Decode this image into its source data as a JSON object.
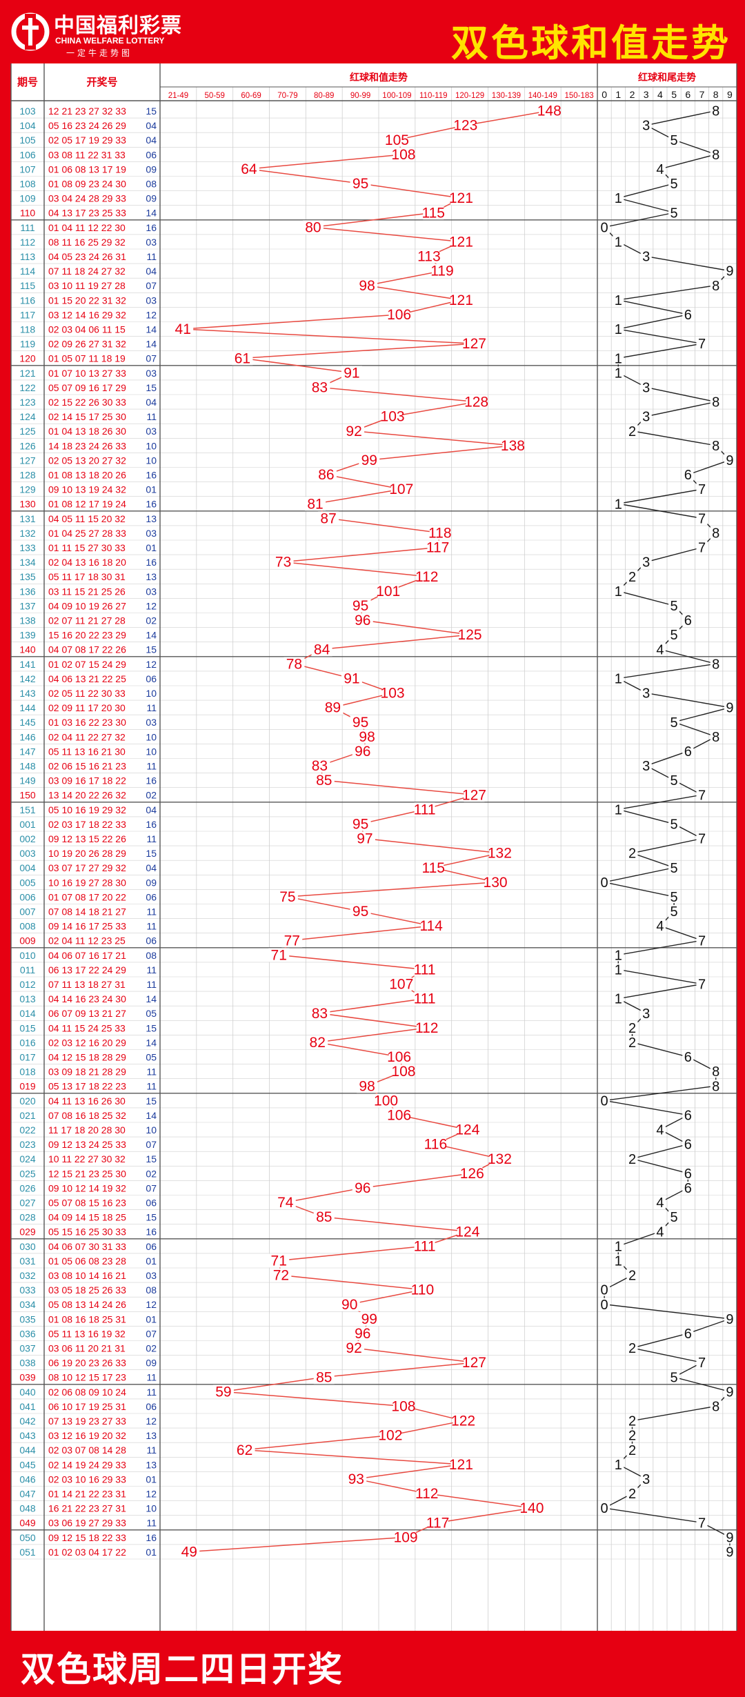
{
  "header": {
    "logo_cn": "中国福利彩票",
    "logo_en": "CHINA WELFARE LOTTERY",
    "logo_sub": "一定牛走势图",
    "title": "双色球和值走势"
  },
  "table": {
    "col_period": "期号",
    "col_draw": "开奖号",
    "col_sum": "红球和值走势",
    "col_tail": "红球和尾走势",
    "sum_ranges": [
      "21-49",
      "50-59",
      "60-69",
      "70-79",
      "80-89",
      "90-99",
      "100-109",
      "110-119",
      "120-129",
      "130-139",
      "140-149",
      "150-183"
    ],
    "tail_digits": [
      "0",
      "1",
      "2",
      "3",
      "4",
      "5",
      "6",
      "7",
      "8",
      "9"
    ]
  },
  "footer": {
    "text": "双色球周二四日开奖"
  },
  "colors": {
    "red": "#e60012",
    "yellow": "#ffe400",
    "teal": "#2b8fa8",
    "blue": "#1a3a9c",
    "grid": "#cfcfcf",
    "line": "#e8483f"
  },
  "chart_data": [
    {
      "type": "line",
      "title": "红球和值走势",
      "x": [
        "103",
        "104",
        "105",
        "106",
        "107",
        "108",
        "109",
        "110",
        "111",
        "112",
        "113",
        "114",
        "115",
        "116",
        "117",
        "118",
        "119",
        "120",
        "121",
        "122",
        "123",
        "124",
        "125",
        "126",
        "127",
        "128",
        "129",
        "130",
        "131",
        "132",
        "133",
        "134",
        "135",
        "136",
        "137",
        "138",
        "139",
        "140",
        "141",
        "142",
        "143",
        "144",
        "145",
        "146",
        "147",
        "148",
        "149",
        "150",
        "151",
        "001",
        "002",
        "003",
        "004",
        "005",
        "006",
        "007",
        "008",
        "009",
        "010",
        "011",
        "012",
        "013",
        "014",
        "015",
        "016",
        "017",
        "018",
        "019",
        "020",
        "021",
        "022",
        "023",
        "024",
        "025",
        "026",
        "027",
        "028",
        "029",
        "030",
        "031",
        "032",
        "033",
        "034",
        "035",
        "036",
        "037",
        "038",
        "039",
        "040",
        "041",
        "042",
        "043",
        "044",
        "045",
        "046",
        "047",
        "048",
        "049",
        "050",
        "051"
      ],
      "categories": [
        "21-49",
        "50-59",
        "60-69",
        "70-79",
        "80-89",
        "90-99",
        "100-109",
        "110-119",
        "120-129",
        "130-139",
        "140-149",
        "150-183"
      ],
      "values": [
        148,
        123,
        105,
        108,
        64,
        95,
        121,
        115,
        80,
        121,
        113,
        119,
        98,
        121,
        106,
        41,
        127,
        61,
        91,
        83,
        128,
        103,
        92,
        138,
        99,
        86,
        107,
        81,
        87,
        118,
        117,
        73,
        112,
        101,
        95,
        96,
        125,
        84,
        78,
        91,
        103,
        89,
        95,
        98,
        96,
        83,
        85,
        127,
        111,
        95,
        97,
        132,
        115,
        130,
        75,
        95,
        114,
        77,
        71,
        111,
        107,
        111,
        83,
        112,
        82,
        106,
        108,
        98,
        100,
        106,
        124,
        116,
        132,
        126,
        96,
        74,
        85,
        124,
        111,
        71,
        72,
        110,
        90,
        99,
        96,
        92,
        127,
        85,
        59,
        108,
        122,
        102,
        62,
        121,
        93,
        112,
        140,
        117,
        109,
        49
      ]
    },
    {
      "type": "line",
      "title": "红球和尾走势",
      "x": [
        "103",
        "104",
        "105",
        "106",
        "107",
        "108",
        "109",
        "110",
        "111",
        "112",
        "113",
        "114",
        "115",
        "116",
        "117",
        "118",
        "119",
        "120",
        "121",
        "122",
        "123",
        "124",
        "125",
        "126",
        "127",
        "128",
        "129",
        "130",
        "131",
        "132",
        "133",
        "134",
        "135",
        "136",
        "137",
        "138",
        "139",
        "140",
        "141",
        "142",
        "143",
        "144",
        "145",
        "146",
        "147",
        "148",
        "149",
        "150",
        "151",
        "001",
        "002",
        "003",
        "004",
        "005",
        "006",
        "007",
        "008",
        "009",
        "010",
        "011",
        "012",
        "013",
        "014",
        "015",
        "016",
        "017",
        "018",
        "019",
        "020",
        "021",
        "022",
        "023",
        "024",
        "025",
        "026",
        "027",
        "028",
        "029",
        "030",
        "031",
        "032",
        "033",
        "034",
        "035",
        "036",
        "037",
        "038",
        "039",
        "040",
        "041",
        "042",
        "043",
        "044",
        "045",
        "046",
        "047",
        "048",
        "049",
        "050",
        "051"
      ],
      "categories": [
        "0",
        "1",
        "2",
        "3",
        "4",
        "5",
        "6",
        "7",
        "8",
        "9"
      ],
      "values": [
        8,
        3,
        5,
        8,
        4,
        5,
        1,
        5,
        0,
        1,
        3,
        9,
        8,
        1,
        6,
        1,
        7,
        1,
        1,
        3,
        8,
        3,
        2,
        8,
        9,
        6,
        7,
        1,
        7,
        8,
        7,
        3,
        2,
        1,
        5,
        6,
        5,
        4,
        8,
        1,
        3,
        9,
        5,
        8,
        6,
        3,
        5,
        7,
        1,
        5,
        7,
        2,
        5,
        0,
        5,
        5,
        4,
        7,
        1,
        1,
        7,
        1,
        3,
        2,
        2,
        6,
        8,
        8,
        0,
        6,
        4,
        6,
        2,
        6,
        6,
        4,
        5,
        4,
        1,
        1,
        2,
        0,
        0,
        9,
        6,
        2,
        7,
        5,
        9,
        8,
        2,
        2,
        2,
        1,
        3,
        2,
        0,
        7,
        9,
        9
      ]
    }
  ],
  "draws": [
    {
      "p": "103",
      "red": "12 21 23 27 32 33",
      "blue": "15"
    },
    {
      "p": "104",
      "red": "05 16 23 24 26 29",
      "blue": "04"
    },
    {
      "p": "105",
      "red": "02 05 17 19 29 33",
      "blue": "04"
    },
    {
      "p": "106",
      "red": "03 08 11 22 31 33",
      "blue": "06"
    },
    {
      "p": "107",
      "red": "01 06 08 13 17 19",
      "blue": "09"
    },
    {
      "p": "108",
      "red": "01 08 09 23 24 30",
      "blue": "08"
    },
    {
      "p": "109",
      "red": "03 04 24 28 29 33",
      "blue": "09"
    },
    {
      "p": "110",
      "red": "04 13 17 23 25 33",
      "blue": "14"
    },
    {
      "p": "111",
      "red": "01 04 11 12 22 30",
      "blue": "16"
    },
    {
      "p": "112",
      "red": "08 11 16 25 29 32",
      "blue": "03"
    },
    {
      "p": "113",
      "red": "04 05 23 24 26 31",
      "blue": "11"
    },
    {
      "p": "114",
      "red": "07 11 18 24 27 32",
      "blue": "04"
    },
    {
      "p": "115",
      "red": "03 10 11 19 27 28",
      "blue": "07"
    },
    {
      "p": "116",
      "red": "01 15 20 22 31 32",
      "blue": "03"
    },
    {
      "p": "117",
      "red": "03 12 14 16 29 32",
      "blue": "12"
    },
    {
      "p": "118",
      "red": "02 03 04 06 11 15",
      "blue": "14"
    },
    {
      "p": "119",
      "red": "02 09 26 27 31 32",
      "blue": "14"
    },
    {
      "p": "120",
      "red": "01 05 07 11 18 19",
      "blue": "07"
    },
    {
      "p": "121",
      "red": "01 07 10 13 27 33",
      "blue": "03"
    },
    {
      "p": "122",
      "red": "05 07 09 16 17 29",
      "blue": "15"
    },
    {
      "p": "123",
      "red": "02 15 22 26 30 33",
      "blue": "04"
    },
    {
      "p": "124",
      "red": "02 14 15 17 25 30",
      "blue": "11"
    },
    {
      "p": "125",
      "red": "01 04 13 18 26 30",
      "blue": "03"
    },
    {
      "p": "126",
      "red": "14 18 23 24 26 33",
      "blue": "10"
    },
    {
      "p": "127",
      "red": "02 05 13 20 27 32",
      "blue": "10"
    },
    {
      "p": "128",
      "red": "01 08 13 18 20 26",
      "blue": "16"
    },
    {
      "p": "129",
      "red": "09 10 13 19 24 32",
      "blue": "01"
    },
    {
      "p": "130",
      "red": "01 08 12 17 19 24",
      "blue": "16"
    },
    {
      "p": "131",
      "red": "04 05 11 15 20 32",
      "blue": "13"
    },
    {
      "p": "132",
      "red": "01 04 25 27 28 33",
      "blue": "03"
    },
    {
      "p": "133",
      "red": "01 11 15 27 30 33",
      "blue": "01"
    },
    {
      "p": "134",
      "red": "02 04 13 16 18 20",
      "blue": "16"
    },
    {
      "p": "135",
      "red": "05 11 17 18 30 31",
      "blue": "13"
    },
    {
      "p": "136",
      "red": "03 11 15 21 25 26",
      "blue": "03"
    },
    {
      "p": "137",
      "red": "04 09 10 19 26 27",
      "blue": "12"
    },
    {
      "p": "138",
      "red": "02 07 11 21 27 28",
      "blue": "02"
    },
    {
      "p": "139",
      "red": "15 16 20 22 23 29",
      "blue": "14"
    },
    {
      "p": "140",
      "red": "04 07 08 17 22 26",
      "blue": "15"
    },
    {
      "p": "141",
      "red": "01 02 07 15 24 29",
      "blue": "12"
    },
    {
      "p": "142",
      "red": "04 06 13 21 22 25",
      "blue": "06"
    },
    {
      "p": "143",
      "red": "02 05 11 22 30 33",
      "blue": "10"
    },
    {
      "p": "144",
      "red": "02 09 11 17 20 30",
      "blue": "11"
    },
    {
      "p": "145",
      "red": "01 03 16 22 23 30",
      "blue": "03"
    },
    {
      "p": "146",
      "red": "02 04 11 22 27 32",
      "blue": "10"
    },
    {
      "p": "147",
      "red": "05 11 13 16 21 30",
      "blue": "10"
    },
    {
      "p": "148",
      "red": "02 06 15 16 21 23",
      "blue": "11"
    },
    {
      "p": "149",
      "red": "03 09 16 17 18 22",
      "blue": "16"
    },
    {
      "p": "150",
      "red": "13 14 20 22 26 32",
      "blue": "02"
    },
    {
      "p": "151",
      "red": "05 10 16 19 29 32",
      "blue": "04"
    },
    {
      "p": "001",
      "red": "02 03 17 18 22 33",
      "blue": "16"
    },
    {
      "p": "002",
      "red": "09 12 13 15 22 26",
      "blue": "11"
    },
    {
      "p": "003",
      "red": "10 19 20 26 28 29",
      "blue": "15"
    },
    {
      "p": "004",
      "red": "03 07 17 27 29 32",
      "blue": "04"
    },
    {
      "p": "005",
      "red": "10 16 19 27 28 30",
      "blue": "09"
    },
    {
      "p": "006",
      "red": "01 07 08 17 20 22",
      "blue": "06"
    },
    {
      "p": "007",
      "red": "07 08 14 18 21 27",
      "blue": "11"
    },
    {
      "p": "008",
      "red": "09 14 16 17 25 33",
      "blue": "11"
    },
    {
      "p": "009",
      "red": "02 04 11 12 23 25",
      "blue": "06"
    },
    {
      "p": "010",
      "red": "04 06 07 16 17 21",
      "blue": "08"
    },
    {
      "p": "011",
      "red": "06 13 17 22 24 29",
      "blue": "11"
    },
    {
      "p": "012",
      "red": "07 11 13 18 27 31",
      "blue": "11"
    },
    {
      "p": "013",
      "red": "04 14 16 23 24 30",
      "blue": "14"
    },
    {
      "p": "014",
      "red": "06 07 09 13 21 27",
      "blue": "05"
    },
    {
      "p": "015",
      "red": "04 11 15 24 25 33",
      "blue": "15"
    },
    {
      "p": "016",
      "red": "02 03 12 16 20 29",
      "blue": "14"
    },
    {
      "p": "017",
      "red": "04 12 15 18 28 29",
      "blue": "05"
    },
    {
      "p": "018",
      "red": "03 09 18 21 28 29",
      "blue": "11"
    },
    {
      "p": "019",
      "red": "05 13 17 18 22 23",
      "blue": "11"
    },
    {
      "p": "020",
      "red": "04 11 13 16 26 30",
      "blue": "15"
    },
    {
      "p": "021",
      "red": "07 08 16 18 25 32",
      "blue": "14"
    },
    {
      "p": "022",
      "red": "11 17 18 20 28 30",
      "blue": "10"
    },
    {
      "p": "023",
      "red": "09 12 13 24 25 33",
      "blue": "07"
    },
    {
      "p": "024",
      "red": "10 11 22 27 30 32",
      "blue": "15"
    },
    {
      "p": "025",
      "red": "12 15 21 23 25 30",
      "blue": "02"
    },
    {
      "p": "026",
      "red": "09 10 12 14 19 32",
      "blue": "07"
    },
    {
      "p": "027",
      "red": "05 07 08 15 16 23",
      "blue": "06"
    },
    {
      "p": "028",
      "red": "04 09 14 15 18 25",
      "blue": "15"
    },
    {
      "p": "029",
      "red": "05 15 16 25 30 33",
      "blue": "16"
    },
    {
      "p": "030",
      "red": "04 06 07 30 31 33",
      "blue": "06"
    },
    {
      "p": "031",
      "red": "01 05 06 08 23 28",
      "blue": "01"
    },
    {
      "p": "032",
      "red": "03 08 10 14 16 21",
      "blue": "03"
    },
    {
      "p": "033",
      "red": "03 05 18 25 26 33",
      "blue": "08"
    },
    {
      "p": "034",
      "red": "05 08 13 14 24 26",
      "blue": "12"
    },
    {
      "p": "035",
      "red": "01 08 16 18 25 31",
      "blue": "01"
    },
    {
      "p": "036",
      "red": "05 11 13 16 19 32",
      "blue": "07"
    },
    {
      "p": "037",
      "red": "03 06 11 20 21 31",
      "blue": "02"
    },
    {
      "p": "038",
      "red": "06 19 20 23 26 33",
      "blue": "09"
    },
    {
      "p": "039",
      "red": "08 10 12 15 17 23",
      "blue": "11"
    },
    {
      "p": "040",
      "red": "02 06 08 09 10 24",
      "blue": "11"
    },
    {
      "p": "041",
      "red": "06 10 17 19 25 31",
      "blue": "06"
    },
    {
      "p": "042",
      "red": "07 13 19 23 27 33",
      "blue": "12"
    },
    {
      "p": "043",
      "red": "03 12 16 19 20 32",
      "blue": "13"
    },
    {
      "p": "044",
      "red": "02 03 07 08 14 28",
      "blue": "11"
    },
    {
      "p": "045",
      "red": "02 14 19 24 29 33",
      "blue": "13"
    },
    {
      "p": "046",
      "red": "02 03 10 16 29 33",
      "blue": "01"
    },
    {
      "p": "047",
      "red": "01 14 21 22 23 31",
      "blue": "12"
    },
    {
      "p": "048",
      "red": "16 21 22 23 27 31",
      "blue": "10"
    },
    {
      "p": "049",
      "red": "03 06 19 27 29 33",
      "blue": "11"
    },
    {
      "p": "050",
      "red": "09 12 15 18 22 33",
      "blue": "16"
    },
    {
      "p": "051",
      "red": "01 02 03 04 17 22",
      "blue": "01"
    }
  ]
}
